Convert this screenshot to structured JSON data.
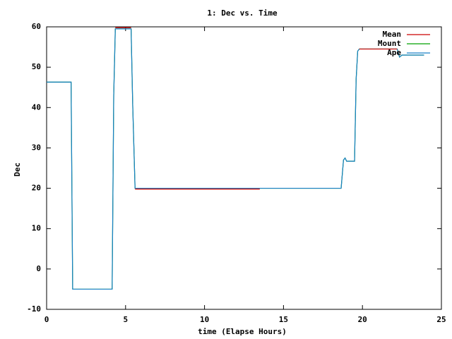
{
  "chart_data": {
    "type": "line",
    "title": "1: Dec vs. Time",
    "x_label": "time (Elapse Hours)",
    "y_label": "Dec",
    "x": [
      0,
      1.55,
      1.65,
      4.15,
      4.25,
      4.35,
      5.35,
      5.45,
      5.6,
      13.5,
      18.65,
      18.8,
      18.9,
      19.0,
      19.5,
      19.6,
      19.7,
      19.8,
      22.2,
      22.35,
      22.5,
      23.9
    ],
    "series": [
      {
        "name": "Mean",
        "color": "#cc0000",
        "values": [
          null,
          null,
          null,
          null,
          null,
          59.8,
          59.8,
          null,
          19.8,
          19.8,
          null,
          null,
          null,
          null,
          null,
          null,
          null,
          54.5,
          54.5,
          null,
          null,
          null
        ]
      },
      {
        "name": "Mount",
        "color": "#00a000",
        "values": [
          46.3,
          46.3,
          -5,
          -5,
          43,
          59.5,
          59.5,
          41,
          20,
          20,
          20,
          27,
          27.5,
          26.7,
          26.7,
          47,
          54,
          54.5,
          54.5,
          52.5,
          53,
          53
        ]
      },
      {
        "name": "Ape",
        "color": "#1a80c8",
        "values": [
          46.3,
          46.3,
          -5,
          -5,
          43,
          59.5,
          59.5,
          41,
          20,
          20,
          20,
          27,
          27.5,
          26.7,
          26.7,
          47,
          54,
          54.5,
          54.5,
          52.5,
          53,
          53
        ]
      }
    ],
    "xlim": [
      0,
      25
    ],
    "xticks": [
      0,
      5,
      10,
      15,
      20,
      25
    ],
    "ylim": [
      -10,
      60
    ],
    "yticks": [
      -10,
      0,
      10,
      20,
      30,
      40,
      50,
      60
    ],
    "grid": false,
    "legend": "top-right"
  }
}
